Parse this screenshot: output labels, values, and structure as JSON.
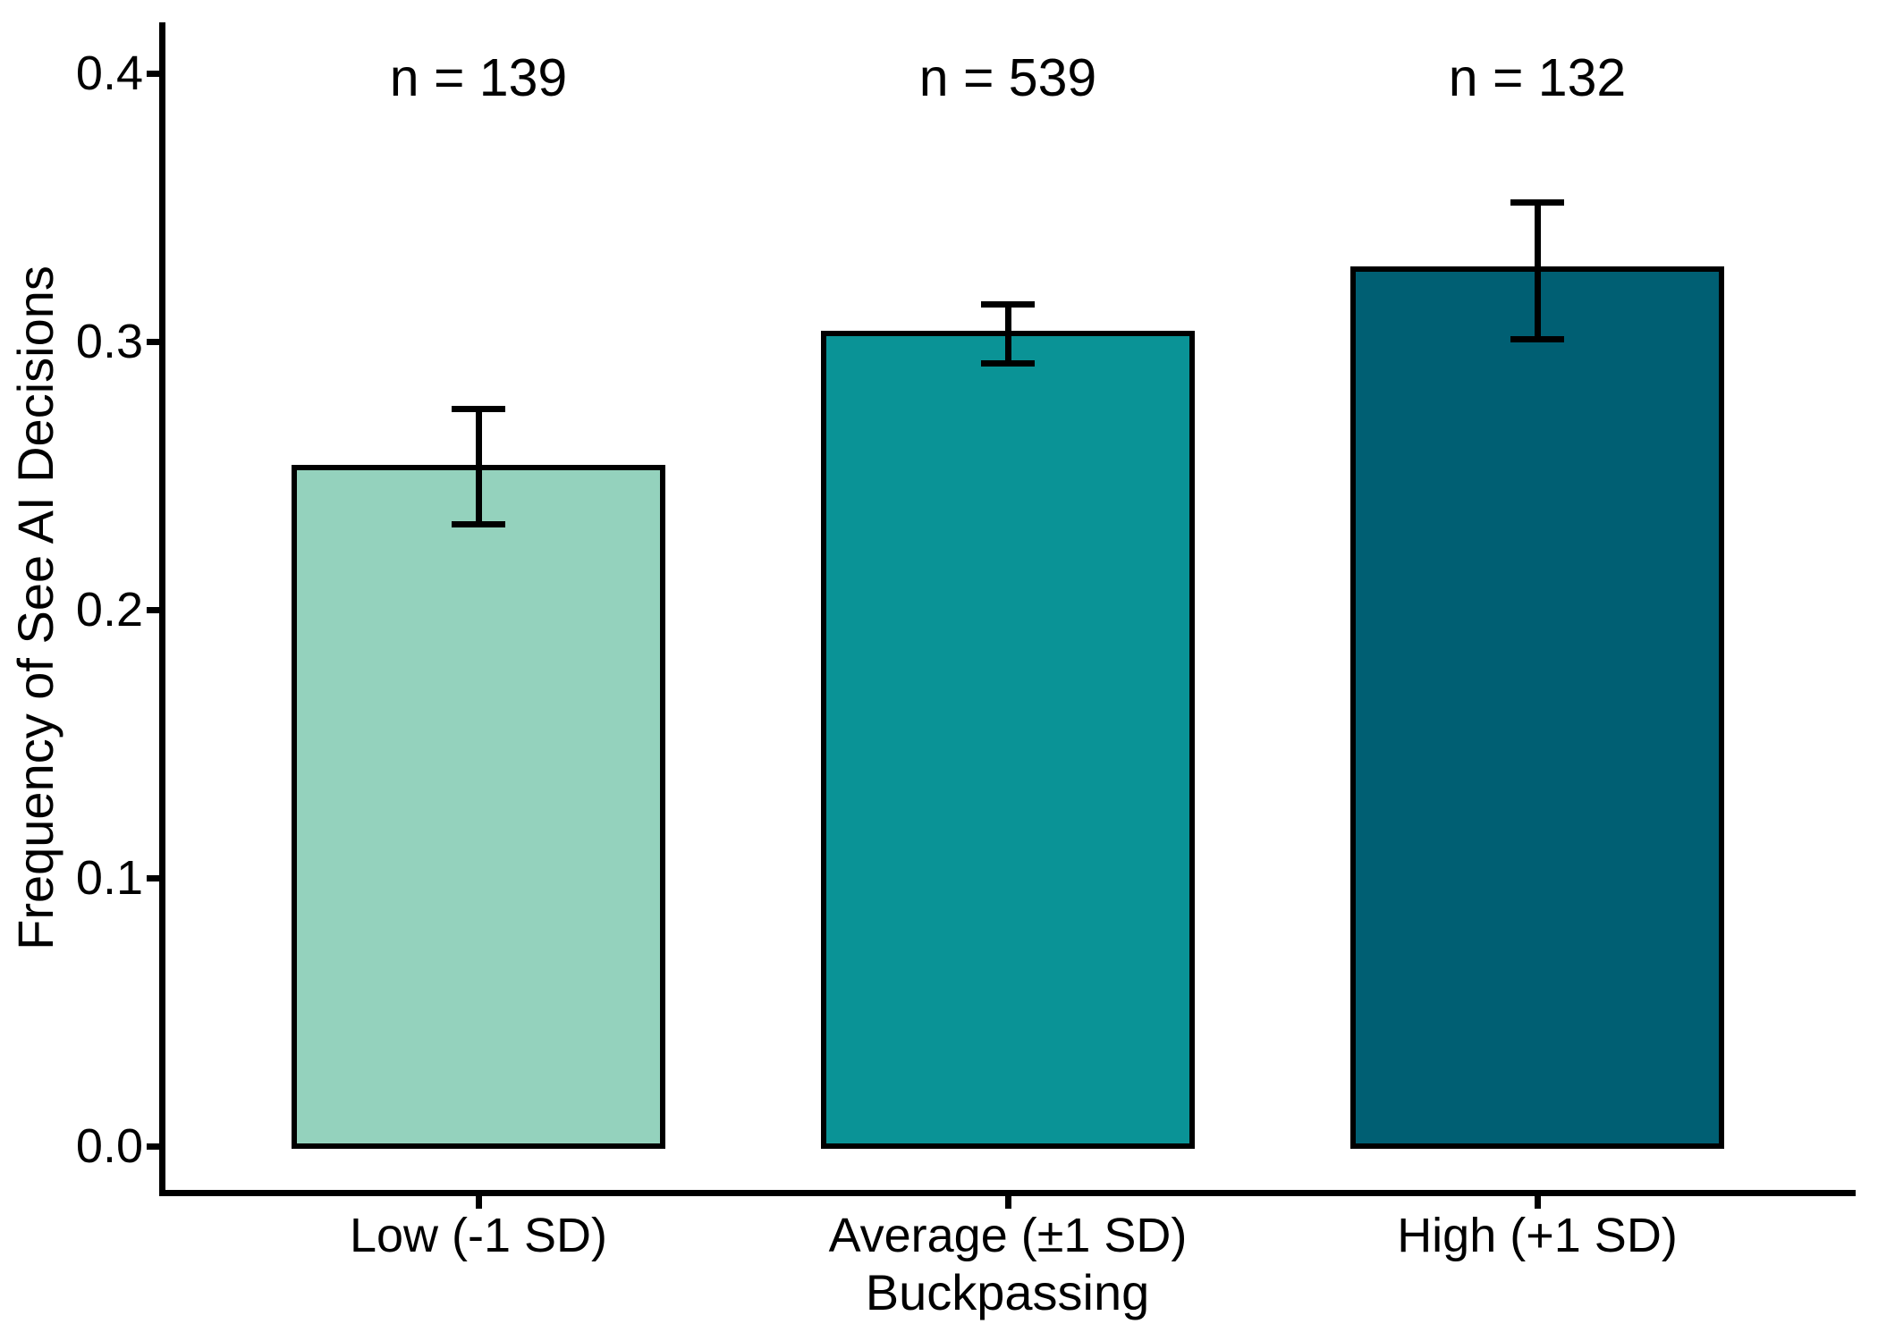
{
  "chart_data": {
    "type": "bar",
    "title": "",
    "xlabel": "Buckpassing",
    "ylabel": "Frequency of See AI Decisions",
    "categories": [
      "Low (-1 SD)",
      "Average (±1 SD)",
      "High (+1 SD)"
    ],
    "values": [
      0.253,
      0.303,
      0.327
    ],
    "error_bars": {
      "lower": [
        0.232,
        0.292,
        0.301
      ],
      "upper": [
        0.275,
        0.314,
        0.352
      ]
    },
    "annotations": [
      "n = 139",
      "n = 539",
      "n = 132"
    ],
    "bar_colors": [
      "#94D2BD",
      "#0A9396",
      "#005F73"
    ],
    "bar_border_color": "#000000",
    "error_bar_color": "#000000",
    "axis_color": "#000000",
    "text_color": "#000000",
    "background_color": "#FFFFFF",
    "yticks": [
      "0.0",
      "0.1",
      "0.2",
      "0.3",
      "0.4"
    ],
    "ylim": [
      -0.02,
      0.42
    ],
    "grid": false,
    "legend": null
  }
}
